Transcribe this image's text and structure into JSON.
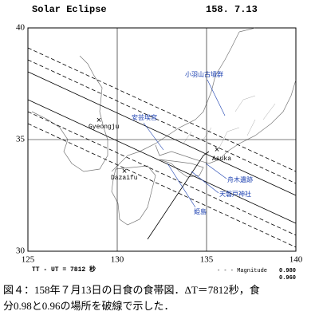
{
  "header": {
    "title": "Solar Eclipse",
    "date": "158. 7.13"
  },
  "map": {
    "xlim": [
      125,
      140
    ],
    "ylim": [
      30,
      40
    ],
    "xticks": [
      125,
      130,
      135,
      140
    ],
    "yticks": [
      30,
      35,
      40
    ],
    "places": [
      "Gyeongju",
      "Dazaifu",
      "Asuka"
    ],
    "sites": [
      "小羽山古墳群",
      "安芸埃宮",
      "舟木遺跡",
      "天磐戸神社",
      "姫島"
    ]
  },
  "footer": {
    "delta_t": "TT - UT = 7812 秒",
    "legend_title": "- - -  Magnitude",
    "magnitudes": [
      "0.980",
      "0.960"
    ]
  },
  "caption": [
    "図４：158年７月13日の日食の食帯図．ΔT＝7812秒，食",
    "分0.98と0.96の場所を破線で示した．"
  ]
}
